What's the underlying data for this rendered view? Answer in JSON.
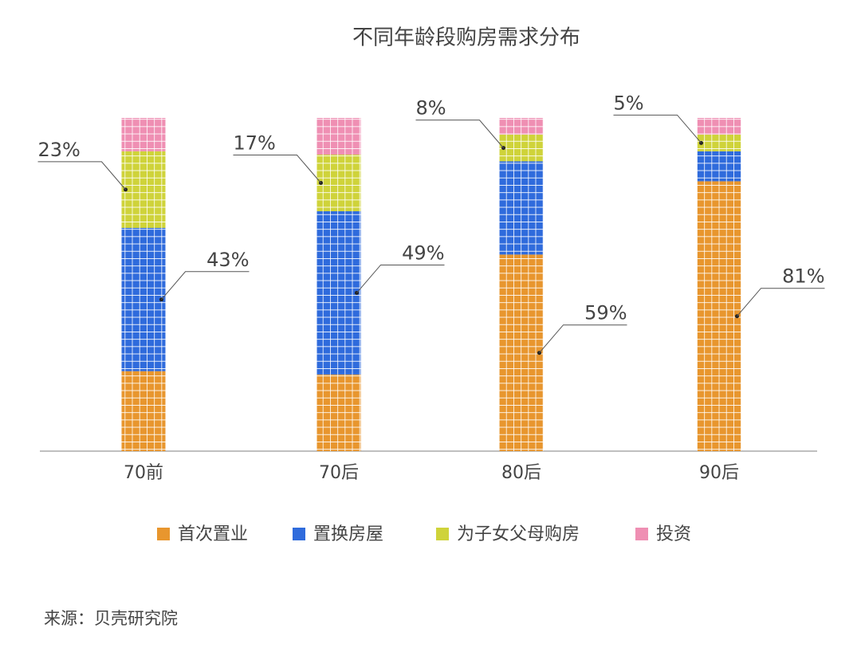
{
  "chart_data": {
    "type": "bar",
    "stacked": true,
    "title": "不同年龄段购房需求分布",
    "categories": [
      "70前",
      "70后",
      "80后",
      "90后"
    ],
    "series": [
      {
        "name": "首次置业",
        "color": "#e8962e",
        "values": [
          24,
          23,
          59,
          81
        ],
        "value_labels": [
          null,
          null,
          "59%",
          "81%"
        ]
      },
      {
        "name": "置换房屋",
        "color": "#2f6bdc",
        "values": [
          43,
          49,
          28,
          9
        ],
        "value_labels": [
          "43%",
          "49%",
          null,
          null
        ]
      },
      {
        "name": "为子女父母购房",
        "color": "#cfd33a",
        "values": [
          23,
          17,
          8,
          5
        ],
        "value_labels": [
          "23%",
          "17%",
          "8%",
          "5%"
        ]
      },
      {
        "name": "投资",
        "color": "#ef8fb3",
        "values": [
          10,
          11,
          5,
          5
        ],
        "value_labels": [
          null,
          null,
          null,
          null
        ]
      }
    ],
    "ylim": [
      0,
      100
    ],
    "source": "来源：贝壳研究院"
  }
}
